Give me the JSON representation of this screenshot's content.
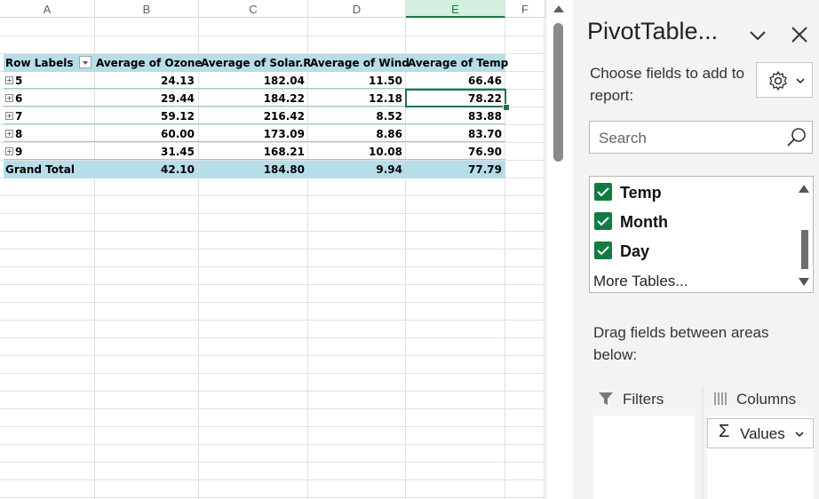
{
  "sheet": {
    "columns": [
      "A",
      "B",
      "C",
      "D",
      "E",
      "F"
    ],
    "selected_column": "E",
    "pivot": {
      "headers": [
        "Row Labels",
        "Average of Ozone",
        "Average of Solar.R",
        "Average of Wind",
        "Average of Temp"
      ],
      "rows": [
        {
          "label": "5",
          "values": [
            "24.13",
            "182.04",
            "11.50",
            "66.46"
          ]
        },
        {
          "label": "6",
          "values": [
            "29.44",
            "184.22",
            "12.18",
            "78.22"
          ]
        },
        {
          "label": "7",
          "values": [
            "59.12",
            "216.42",
            "8.52",
            "83.88"
          ]
        },
        {
          "label": "8",
          "values": [
            "60.00",
            "173.09",
            "8.86",
            "83.70"
          ]
        },
        {
          "label": "9",
          "values": [
            "31.45",
            "168.21",
            "10.08",
            "76.90"
          ]
        }
      ],
      "total": {
        "label": "Grand Total",
        "values": [
          "42.10",
          "184.80",
          "9.94",
          "77.79"
        ]
      },
      "expander_glyph": "⊞"
    }
  },
  "pane": {
    "title": "PivotTable...",
    "choose_text": "Choose fields to add to report:",
    "search_placeholder": "Search",
    "fields": [
      {
        "label": "Temp",
        "checked": true
      },
      {
        "label": "Month",
        "checked": true
      },
      {
        "label": "Day",
        "checked": true
      }
    ],
    "more_tables": "More Tables...",
    "drag_text": "Drag fields between areas below:",
    "filters_label": "Filters",
    "columns_label": "Columns",
    "values_label": "Values",
    "accent_color": "#107c41",
    "header_band_color": "#b7dee8"
  }
}
